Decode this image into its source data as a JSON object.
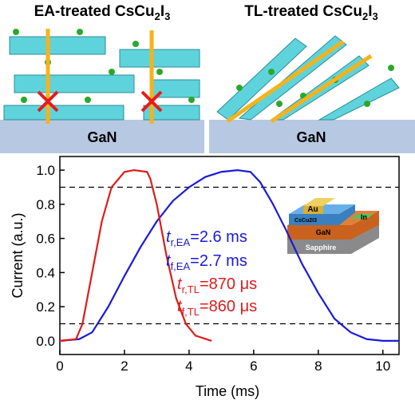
{
  "panels": [
    {
      "title": [
        "EA-treated CsCu",
        "2",
        "I",
        "3"
      ],
      "substrate": "GaN"
    },
    {
      "title": [
        "TL-treated CsCu",
        "2",
        "I",
        "3"
      ],
      "substrate": "GaN"
    }
  ],
  "inset": {
    "labels": [
      "Au",
      "In",
      "CsCu2I3",
      "GaN",
      "Sapphire"
    ]
  },
  "chart_data": {
    "type": "line",
    "x_label": "Time (ms)",
    "y_label": "Current (a.u.)",
    "xlim": [
      0,
      10.5
    ],
    "ylim": [
      -0.08,
      1.08
    ],
    "xticks": [
      0,
      2,
      4,
      6,
      8,
      10
    ],
    "yticks": [
      {
        "value": 0,
        "label": "0.0"
      },
      0.2,
      0.4,
      0.6,
      0.8,
      {
        "value": 1,
        "label": "1.0"
      }
    ],
    "threshold_lines": [
      0.1,
      0.9
    ],
    "series": [
      {
        "color": "#1a1adb",
        "x": [
          0,
          0.6,
          1.0,
          1.5,
          2.0,
          2.5,
          3.0,
          3.5,
          4.0,
          4.5,
          5.0,
          5.5,
          5.9,
          6.2,
          6.6,
          7.0,
          7.5,
          8.0,
          8.5,
          9.0,
          9.5,
          10.0,
          10.5
        ],
        "values": [
          0,
          0.01,
          0.05,
          0.2,
          0.38,
          0.55,
          0.7,
          0.82,
          0.9,
          0.96,
          0.99,
          1.0,
          0.99,
          0.93,
          0.8,
          0.65,
          0.45,
          0.28,
          0.13,
          0.05,
          0.01,
          0,
          0
        ]
      },
      {
        "color": "#e01b1b",
        "x": [
          0,
          0.5,
          0.7,
          1.0,
          1.3,
          1.6,
          2.0,
          2.3,
          2.7,
          2.8,
          3.0,
          3.3,
          3.6,
          3.9,
          4.2,
          4.7
        ],
        "values": [
          0,
          0.01,
          0.1,
          0.4,
          0.7,
          0.9,
          0.99,
          1.0,
          0.99,
          0.95,
          0.8,
          0.5,
          0.25,
          0.1,
          0.03,
          0
        ]
      }
    ],
    "annotations": [
      {
        "symbol": "t",
        "subscript": "r,EA",
        "text": "=2.6 ms",
        "color": "#1a1adb"
      },
      {
        "symbol": "t",
        "subscript": "f,EA",
        "text": "=2.7 ms",
        "color": "#1a1adb"
      },
      {
        "symbol": "t",
        "subscript": "r,TL",
        "text": "=870 μs",
        "color": "#e01b1b"
      },
      {
        "symbol": "t",
        "subscript": "f,TL",
        "text": "=860 μs",
        "color": "#e01b1b"
      }
    ]
  }
}
